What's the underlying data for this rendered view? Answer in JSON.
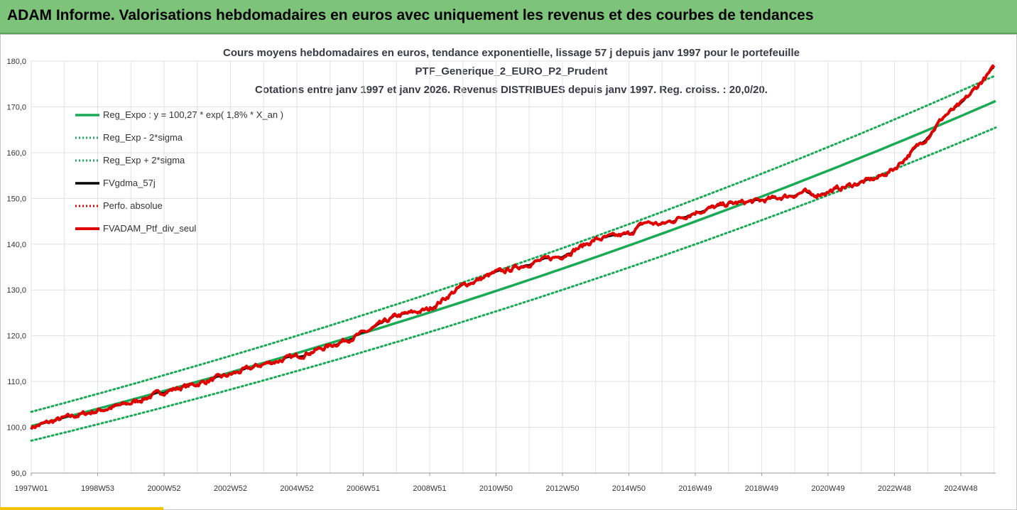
{
  "banner": {
    "title": "ADAM Informe. Valorisations hebdomadaires en euros avec uniquement les revenus et des courbes de tendances"
  },
  "colors": {
    "banner_bg": "#7dc47a",
    "trend": "#1aaa55",
    "black_line": "#000000",
    "red_line": "#e00000",
    "grid": "#e2e2e2"
  },
  "chart_data": {
    "type": "line",
    "title_lines": [
      "Cours moyens hebdomadaires  en euros, tendance exponentielle, lissage 57 j depuis janv 1997 pour le portefeuille",
      "PTF_Generique_2_EURO_P2_Prudent",
      "Cotations entre janv 1997 et janv 2026. Revenus DISTRIBUES depuis janv 1997. Reg. croiss. : 20,0/20."
    ],
    "x_range_years": [
      1997.0,
      2026.05
    ],
    "ylim": [
      90,
      180
    ],
    "y_ticks": [
      90,
      100,
      110,
      120,
      130,
      140,
      150,
      160,
      170,
      180
    ],
    "y_tick_labels": [
      "90,0",
      "100,0",
      "110,0",
      "120,0",
      "130,0",
      "140,0",
      "150,0",
      "160,0",
      "170,0",
      "180,0"
    ],
    "x_ticks": [
      {
        "label": "1997W01",
        "year": 1997.0
      },
      {
        "label": "1998W53",
        "year": 1999.0
      },
      {
        "label": "2000W52",
        "year": 2001.0
      },
      {
        "label": "2002W52",
        "year": 2003.0
      },
      {
        "label": "2004W52",
        "year": 2005.0
      },
      {
        "label": "2006W51",
        "year": 2007.0
      },
      {
        "label": "2008W51",
        "year": 2009.0
      },
      {
        "label": "2010W50",
        "year": 2011.0
      },
      {
        "label": "2012W50",
        "year": 2013.0
      },
      {
        "label": "2014W50",
        "year": 2015.0
      },
      {
        "label": "2016W49",
        "year": 2017.0
      },
      {
        "label": "2018W49",
        "year": 2019.0
      },
      {
        "label": "2020W49",
        "year": 2021.0
      },
      {
        "label": "2022W48",
        "year": 2023.0
      },
      {
        "label": "2024W48",
        "year": 2025.0
      }
    ],
    "legend": [
      {
        "label": "Reg_Expo : y = 100,27 * exp( 1,8% *  X_an )",
        "style": "solid",
        "color": "#1aaa55"
      },
      {
        "label": "Reg_Exp - 2*sigma",
        "style": "dotted",
        "color": "#1aaa55"
      },
      {
        "label": "Reg_Exp + 2*sigma",
        "style": "dotted",
        "color": "#1aaa55"
      },
      {
        "label": "FVgdma_57j",
        "style": "solid",
        "color": "#000000"
      },
      {
        "label": "Perfo. absolue",
        "style": "dotted",
        "color": "#e00000"
      },
      {
        "label": "FVADAM_Ptf_div_seul",
        "style": "solid-thick",
        "color": "#e00000"
      }
    ],
    "trend": {
      "a": 100.27,
      "rate": 0.01843,
      "upper_offset_at_start": 3.1,
      "lower_offset_at_start": -3.2,
      "upper_offset_at_end": 5.6,
      "lower_offset_at_end": -5.8
    },
    "series": [
      {
        "name": "FVADAM_Ptf_div_seul",
        "x": [
          1997.0,
          1998.0,
          1999.0,
          2000.0,
          2001.0,
          2002.0,
          2003.0,
          2004.0,
          2005.0,
          2006.0,
          2007.0,
          2008.0,
          2009.0,
          2010.0,
          2010.5,
          2011.0,
          2011.3,
          2012.0,
          2013.0,
          2014.0,
          2015.0,
          2015.5,
          2016.0,
          2017.0,
          2018.0,
          2019.0,
          2020.0,
          2020.3,
          2020.5,
          2021.0,
          2022.0,
          2022.5,
          2023.0,
          2023.5,
          2024.0,
          2024.5,
          2025.0,
          2025.5,
          2026.0
        ],
        "values": [
          100.0,
          102.0,
          103.6,
          105.3,
          107.8,
          109.5,
          111.5,
          113.8,
          115.5,
          117.8,
          120.5,
          124.3,
          125.8,
          131.0,
          132.3,
          133.8,
          134.2,
          135.8,
          137.5,
          141.0,
          142.2,
          144.8,
          144.3,
          147.0,
          148.8,
          149.5,
          150.8,
          151.5,
          150.5,
          151.5,
          153.5,
          154.5,
          156.5,
          160.0,
          163.5,
          168.0,
          170.5,
          174.5,
          178.5
        ]
      }
    ]
  }
}
